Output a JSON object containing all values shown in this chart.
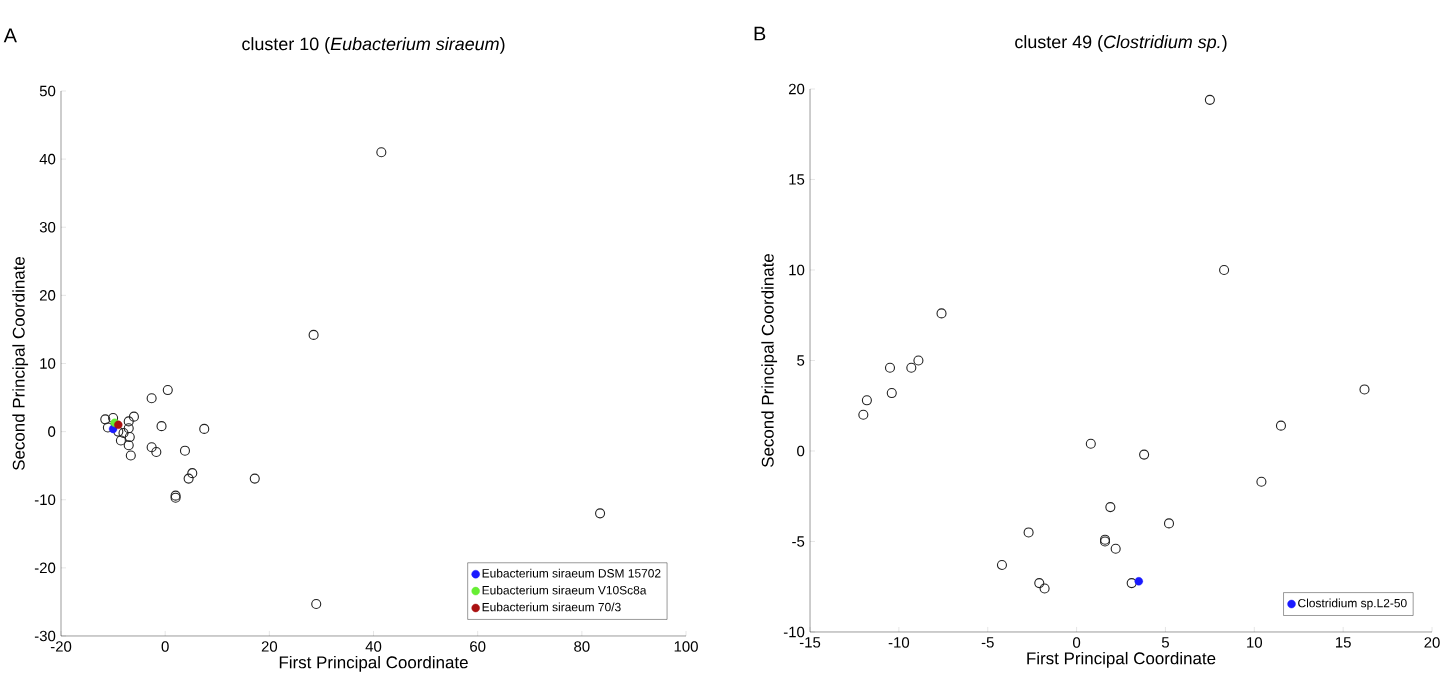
{
  "chart_data": [
    {
      "type": "scatter",
      "title": "cluster 10 (*Eubacterium siraeum*)",
      "xlabel": "First Principal Coordinate",
      "ylabel": "Second Principal Coordinate",
      "annotations": [
        "A"
      ],
      "xlim": [
        -20,
        100
      ],
      "ylim": [
        -30,
        50
      ],
      "xticks": [
        -20,
        0,
        20,
        40,
        60,
        80,
        100
      ],
      "yticks": [
        -30,
        -20,
        -10,
        0,
        10,
        20,
        30,
        40,
        50
      ],
      "grid": false,
      "legend": "bottom right",
      "marker": "circle",
      "series": [
        {
          "color": "#222222",
          "x": [
            41.5,
            28.5,
            83.5,
            29,
            17.2,
            2,
            2,
            4.5,
            5.2,
            3.8,
            7.5,
            -0.7,
            0.5,
            -2.6,
            -2.6,
            -1.7,
            -11.5,
            -11,
            -10,
            -8,
            -7,
            -6,
            -7,
            -8.5,
            -6.8,
            -7,
            -6.6,
            -9
          ],
          "values": [
            41,
            14.2,
            -12,
            -25.3,
            -6.9,
            -9.4,
            -9.7,
            -6.9,
            -6.1,
            -2.8,
            0.4,
            0.8,
            6.1,
            4.9,
            -2.3,
            -3,
            1.8,
            0.6,
            2,
            -0.2,
            1.5,
            2.2,
            0.5,
            -1.3,
            -0.8,
            -2,
            -3.5,
            0
          ]
        },
        {
          "name": "Eubacterium siraeum DSM 15702",
          "color": "#1a1aff",
          "x": [
            -10
          ],
          "values": [
            0.4
          ]
        },
        {
          "name": "Eubacterium siraeum V10Sc8a",
          "color": "#66ee33",
          "x": [
            -9.7
          ],
          "values": [
            1.3
          ]
        },
        {
          "name": "Eubacterium siraeum 70/3",
          "color": "#aa1111",
          "x": [
            -9
          ],
          "values": [
            1
          ]
        }
      ]
    },
    {
      "type": "scatter",
      "title": "cluster 49 (*Clostridium sp.*)",
      "xlabel": "First Principal Coordinate",
      "ylabel": "Second Principal Coordinate",
      "annotations": [
        "B"
      ],
      "xlim": [
        -15,
        20
      ],
      "ylim": [
        -10,
        20
      ],
      "xticks": [
        -15,
        -10,
        -5,
        0,
        5,
        10,
        15,
        20
      ],
      "yticks": [
        -10,
        -5,
        0,
        5,
        10,
        15,
        20
      ],
      "grid": false,
      "legend": "bottom right",
      "marker": "circle",
      "series": [
        {
          "color": "#222222",
          "x": [
            7.5,
            8.3,
            -7.6,
            -8.9,
            -9.3,
            -10.5,
            -10.4,
            -11.8,
            -12,
            0.8,
            3.8,
            16.2,
            11.5,
            10.4,
            1.9,
            5.2,
            -2.7,
            1.6,
            1.6,
            2.2,
            -4.2,
            -2.1,
            -1.8,
            3.1
          ],
          "values": [
            19.4,
            10,
            7.6,
            5,
            4.6,
            4.6,
            3.2,
            2.8,
            2,
            0.4,
            -0.2,
            3.4,
            1.4,
            -1.7,
            -3.1,
            -4,
            -4.5,
            -4.9,
            -5,
            -5.4,
            -6.3,
            -7.3,
            -7.6,
            -7.3
          ]
        },
        {
          "name": "Clostridium sp.L2-50",
          "color": "#1a1aff",
          "x": [
            3.5
          ],
          "values": [
            -7.2
          ]
        }
      ]
    }
  ]
}
